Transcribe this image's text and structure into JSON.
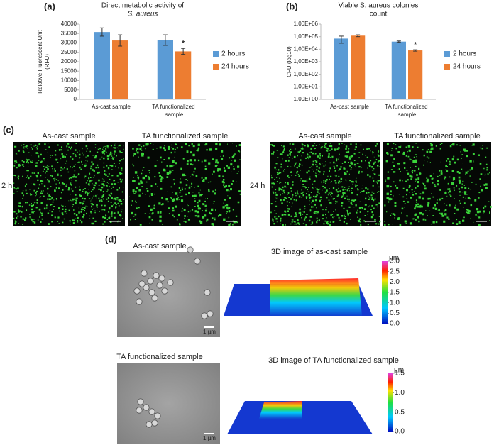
{
  "panels": {
    "a": "(a)",
    "b": "(b)",
    "c": "(c)",
    "d": "(d)"
  },
  "chart_data": [
    {
      "type": "bar",
      "title": [
        "Direct metabolic activity of",
        "S. aureus"
      ],
      "y_label": [
        "Relative Fluorescent Unit",
        "(RFU)"
      ],
      "categories": [
        "As-cast sample",
        "TA functionalized sample"
      ],
      "series": [
        {
          "name": "2 hours",
          "color": "#5b9bd5",
          "values": [
            35800,
            31500
          ],
          "errors": [
            2200,
            2800
          ]
        },
        {
          "name": "24 hours",
          "color": "#ed7d31",
          "values": [
            31300,
            25500
          ],
          "errors": [
            3000,
            1600
          ]
        }
      ],
      "ylim": [
        0,
        40000
      ],
      "yticks": [
        0,
        5000,
        10000,
        15000,
        20000,
        25000,
        30000,
        35000,
        40000
      ],
      "annotation": "*",
      "legend": "right",
      "grid": false
    },
    {
      "type": "bar",
      "title": [
        "Viable S. aureus colonies",
        "count"
      ],
      "y_label": [
        "CFU (log10)"
      ],
      "categories": [
        "As-cast sample",
        "TA functionalized sample"
      ],
      "series": [
        {
          "name": "2 hours",
          "color": "#5b9bd5",
          "values": [
            70000,
            40000
          ],
          "errors": [
            40000,
            5000
          ]
        },
        {
          "name": "24 hours",
          "color": "#ed7d31",
          "values": [
            120000,
            8000
          ],
          "errors": [
            20000,
            1000
          ]
        }
      ],
      "log_scale": true,
      "ylim": [
        1,
        1000000
      ],
      "yticks": [
        {
          "value": 1,
          "label": "1,00E+00"
        },
        {
          "value": 10,
          "label": "1,00E+01"
        },
        {
          "value": 100,
          "label": "1,00E+02"
        },
        {
          "value": 1000,
          "label": "1,00E+03"
        },
        {
          "value": 10000,
          "label": "1,00E+04"
        },
        {
          "value": 100000,
          "label": "1,00E+05"
        },
        {
          "value": 1000000,
          "label": "1,00E+06"
        }
      ],
      "annotation": "*",
      "legend": "right",
      "grid": false
    }
  ],
  "fluorescence": {
    "columns": [
      "As-cast sample",
      "TA functionalized sample",
      "As-cast sample",
      "TA functionalized sample"
    ],
    "rows": [
      "2 h",
      "24 h"
    ]
  },
  "sem": [
    {
      "title": "As-cast sample",
      "scale": "1 µm",
      "surface_title": "3D image of as-cast sample",
      "colorbar": {
        "unit": "µm",
        "ticks": [
          {
            "value": 0,
            "label": "0.0"
          },
          {
            "value": 0.5,
            "label": "0.5"
          },
          {
            "value": 1,
            "label": "1.0"
          },
          {
            "value": 1.5,
            "label": "1.5"
          },
          {
            "value": 2,
            "label": "2.0"
          },
          {
            "value": 2.5,
            "label": "2.5"
          },
          {
            "value": 3,
            "label": "3.0"
          }
        ]
      }
    },
    {
      "title": "TA functionalized sample",
      "scale": "1 µm",
      "surface_title": "3D image of TA functionalized sample",
      "colorbar": {
        "unit": "µm",
        "ticks": [
          {
            "value": 0,
            "label": "0.0"
          },
          {
            "value": 0.5,
            "label": "0.5"
          },
          {
            "value": 1,
            "label": "1.0"
          },
          {
            "value": 1.5,
            "label": "1.5"
          }
        ]
      }
    }
  ]
}
